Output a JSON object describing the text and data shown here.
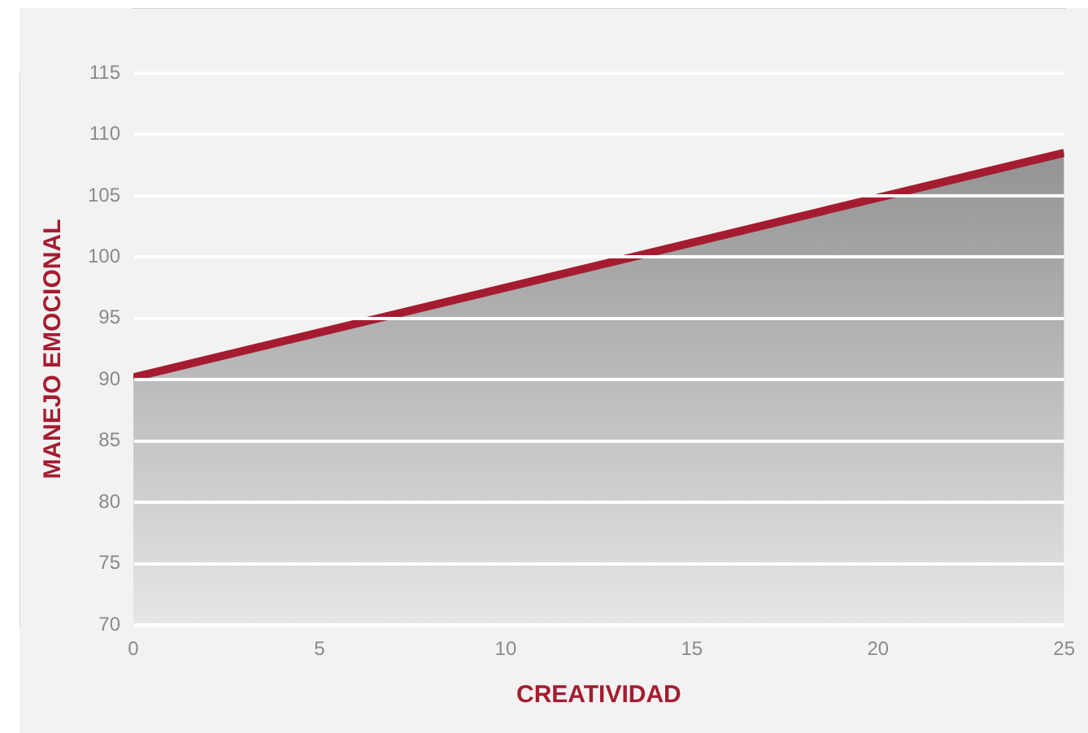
{
  "chart_data": {
    "type": "area",
    "xlabel": "CREATIVIDAD",
    "ylabel": "MANEJO EMOCIONAL",
    "x": [
      0,
      25
    ],
    "series": [
      {
        "color": "#a51c30",
        "values": [
          90.2,
          108.5
        ]
      }
    ],
    "xlim": [
      0,
      25
    ],
    "xticks": [
      0,
      5,
      10,
      15,
      20,
      25
    ],
    "ylim": [
      70,
      115
    ],
    "yticks": [
      70,
      75,
      80,
      85,
      90,
      95,
      100,
      105,
      110,
      115
    ],
    "grid": "y",
    "legend": false
  }
}
